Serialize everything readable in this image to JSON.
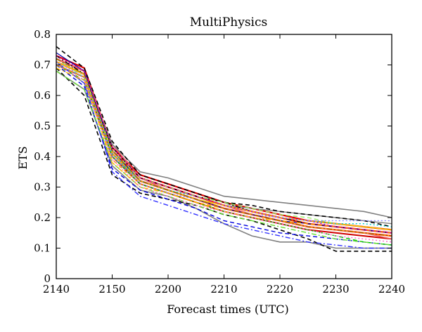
{
  "chart_data": {
    "type": "line",
    "title": "MultiPhysics",
    "xlabel": "Forecast times (UTC)",
    "ylabel": "ETS",
    "x": [
      "2140",
      "2145",
      "2150",
      "2155",
      "2200",
      "2205",
      "2210",
      "2215",
      "2220",
      "2225",
      "2230",
      "2235",
      "2240"
    ],
    "x_ticks": [
      "2140",
      "2150",
      "2200",
      "2210",
      "2220",
      "2230",
      "2240"
    ],
    "ylim": [
      0,
      0.8
    ],
    "y_ticks": [
      "0",
      "0.1",
      "0.2",
      "0.3",
      "0.4",
      "0.5",
      "0.6",
      "0.7",
      "0.8"
    ],
    "grid": false,
    "legend": "none",
    "series": [
      {
        "color": "#ff2a00",
        "dash": "solid",
        "width": 2.4,
        "values": [
          0.72,
          0.68,
          0.42,
          0.33,
          0.3,
          0.27,
          0.24,
          0.22,
          0.2,
          0.18,
          0.17,
          0.16,
          0.15
        ]
      },
      {
        "color": "#ff2a00",
        "dash": "solid",
        "width": 2.4,
        "values": [
          0.71,
          0.67,
          0.41,
          0.32,
          0.29,
          0.26,
          0.23,
          0.21,
          0.19,
          0.17,
          0.16,
          0.15,
          0.14
        ]
      },
      {
        "color": "#e00000",
        "dash": "solid",
        "width": 2.2,
        "values": [
          0.73,
          0.69,
          0.43,
          0.34,
          0.31,
          0.28,
          0.25,
          0.23,
          0.21,
          0.19,
          0.18,
          0.17,
          0.16
        ]
      },
      {
        "color": "#d00000",
        "dash": "solid",
        "width": 2.0,
        "values": [
          0.7,
          0.66,
          0.4,
          0.31,
          0.28,
          0.25,
          0.22,
          0.2,
          0.18,
          0.16,
          0.15,
          0.14,
          0.13
        ]
      },
      {
        "color": "#f06a6a",
        "dash": "solid",
        "width": 1.6,
        "values": [
          0.72,
          0.68,
          0.44,
          0.33,
          0.29,
          0.26,
          0.24,
          0.21,
          0.19,
          0.17,
          0.16,
          0.15,
          0.13
        ]
      },
      {
        "color": "#808080",
        "dash": "solid",
        "width": 1.6,
        "values": [
          0.7,
          0.66,
          0.44,
          0.35,
          0.33,
          0.3,
          0.27,
          0.26,
          0.25,
          0.24,
          0.23,
          0.22,
          0.2
        ]
      },
      {
        "color": "#808080",
        "dash": "solid",
        "width": 1.6,
        "values": [
          0.68,
          0.62,
          0.37,
          0.29,
          0.27,
          0.23,
          0.18,
          0.14,
          0.12,
          0.12,
          0.1,
          0.1,
          0.1
        ]
      },
      {
        "color": "#808080",
        "dash": "solid",
        "width": 1.4,
        "values": [
          0.71,
          0.64,
          0.4,
          0.32,
          0.29,
          0.26,
          0.24,
          0.23,
          0.22,
          0.21,
          0.2,
          0.19,
          0.18
        ]
      },
      {
        "color": "#000000",
        "dash": "dashed",
        "width": 1.6,
        "values": [
          0.76,
          0.69,
          0.45,
          0.34,
          0.31,
          0.28,
          0.25,
          0.24,
          0.22,
          0.21,
          0.2,
          0.19,
          0.17
        ]
      },
      {
        "color": "#000000",
        "dash": "dashed",
        "width": 1.6,
        "values": [
          0.69,
          0.6,
          0.34,
          0.28,
          0.26,
          0.24,
          0.21,
          0.19,
          0.16,
          0.13,
          0.09,
          0.09,
          0.09
        ]
      },
      {
        "color": "#000000",
        "dash": "dashdot",
        "width": 1.4,
        "values": [
          0.73,
          0.67,
          0.43,
          0.33,
          0.3,
          0.27,
          0.25,
          0.22,
          0.2,
          0.18,
          0.17,
          0.16,
          0.15
        ]
      },
      {
        "color": "#0000dd",
        "dash": "dashed",
        "width": 1.4,
        "values": [
          0.7,
          0.63,
          0.36,
          0.29,
          0.26,
          0.23,
          0.19,
          0.17,
          0.15,
          0.14,
          0.13,
          0.12,
          0.11
        ]
      },
      {
        "color": "#3333ff",
        "dash": "dashdot",
        "width": 1.4,
        "values": [
          0.71,
          0.64,
          0.35,
          0.27,
          0.24,
          0.21,
          0.18,
          0.16,
          0.14,
          0.12,
          0.11,
          0.1,
          0.1
        ]
      },
      {
        "color": "#0000aa",
        "dash": "solid",
        "width": 1.2,
        "values": [
          0.74,
          0.68,
          0.42,
          0.32,
          0.29,
          0.26,
          0.23,
          0.21,
          0.19,
          0.18,
          0.17,
          0.16,
          0.15
        ]
      },
      {
        "color": "#00c000",
        "dash": "dashed",
        "width": 1.4,
        "values": [
          0.7,
          0.65,
          0.4,
          0.31,
          0.28,
          0.25,
          0.22,
          0.2,
          0.18,
          0.16,
          0.14,
          0.12,
          0.11
        ]
      },
      {
        "color": "#66dd33",
        "dash": "dashdot",
        "width": 1.4,
        "values": [
          0.68,
          0.62,
          0.38,
          0.3,
          0.27,
          0.24,
          0.21,
          0.19,
          0.17,
          0.15,
          0.13,
          0.12,
          0.11
        ]
      },
      {
        "color": "#99ee66",
        "dash": "dashed",
        "width": 1.4,
        "values": [
          0.72,
          0.66,
          0.42,
          0.33,
          0.3,
          0.27,
          0.25,
          0.23,
          0.21,
          0.2,
          0.18,
          0.17,
          0.16
        ]
      },
      {
        "color": "#ffd000",
        "dash": "solid",
        "width": 1.4,
        "values": [
          0.71,
          0.67,
          0.41,
          0.32,
          0.29,
          0.26,
          0.24,
          0.22,
          0.2,
          0.19,
          0.18,
          0.17,
          0.16
        ]
      },
      {
        "color": "#ff9900",
        "dash": "dashed",
        "width": 1.4,
        "values": [
          0.7,
          0.66,
          0.39,
          0.31,
          0.28,
          0.25,
          0.23,
          0.21,
          0.19,
          0.18,
          0.17,
          0.16,
          0.15
        ]
      },
      {
        "color": "#ffbb00",
        "dash": "dashdot",
        "width": 1.4,
        "values": [
          0.69,
          0.65,
          0.38,
          0.3,
          0.28,
          0.25,
          0.22,
          0.2,
          0.19,
          0.17,
          0.16,
          0.15,
          0.14
        ]
      },
      {
        "color": "#00cccc",
        "dash": "dotted",
        "width": 1.4,
        "values": [
          0.72,
          0.67,
          0.41,
          0.32,
          0.29,
          0.27,
          0.24,
          0.22,
          0.2,
          0.19,
          0.18,
          0.18,
          0.17
        ]
      },
      {
        "color": "#cc00cc",
        "dash": "dotted",
        "width": 1.4,
        "values": [
          0.73,
          0.68,
          0.43,
          0.33,
          0.3,
          0.27,
          0.24,
          0.22,
          0.2,
          0.19,
          0.17,
          0.16,
          0.15
        ]
      },
      {
        "color": "#ff66cc",
        "dash": "dotted",
        "width": 1.4,
        "values": [
          0.7,
          0.65,
          0.39,
          0.3,
          0.27,
          0.24,
          0.22,
          0.2,
          0.18,
          0.16,
          0.14,
          0.13,
          0.12
        ]
      },
      {
        "color": "#8888ff",
        "dash": "dotted",
        "width": 1.4,
        "values": [
          0.71,
          0.66,
          0.4,
          0.31,
          0.28,
          0.26,
          0.23,
          0.21,
          0.2,
          0.19,
          0.19,
          0.19,
          0.19
        ]
      },
      {
        "color": "#996600",
        "dash": "dashdot",
        "width": 1.2,
        "values": [
          0.72,
          0.67,
          0.42,
          0.32,
          0.29,
          0.26,
          0.23,
          0.21,
          0.19,
          0.17,
          0.16,
          0.15,
          0.14
        ]
      }
    ]
  }
}
